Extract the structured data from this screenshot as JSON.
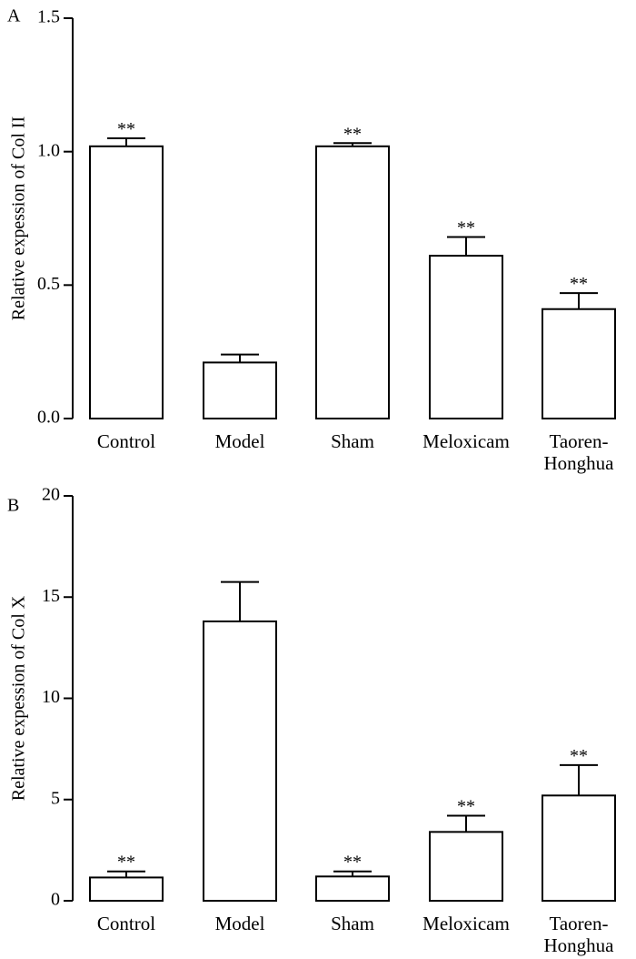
{
  "chart_data": [
    {
      "type": "bar",
      "panel_label": "A",
      "ylabel": "Relative expession of Col II",
      "xlabel": "",
      "ylim": [
        0,
        1.5
      ],
      "yticks": [
        "0.0",
        "0.5",
        "1.0",
        "1.5"
      ],
      "ytick_values": [
        0,
        0.5,
        1.0,
        1.5
      ],
      "categories": [
        {
          "lines": [
            "Control"
          ]
        },
        {
          "lines": [
            "Model"
          ]
        },
        {
          "lines": [
            "Sham"
          ]
        },
        {
          "lines": [
            "Meloxicam"
          ]
        },
        {
          "lines": [
            "Taoren-",
            "Honghua"
          ]
        }
      ],
      "values": [
        1.02,
        0.21,
        1.02,
        0.61,
        0.41
      ],
      "errors": [
        0.03,
        0.03,
        0.012,
        0.07,
        0.06
      ],
      "significance": [
        "**",
        "",
        "**",
        "**",
        "**"
      ]
    },
    {
      "type": "bar",
      "panel_label": "B",
      "ylabel": "Relative expession of Col X",
      "xlabel": "",
      "ylim": [
        0,
        20
      ],
      "yticks": [
        "0",
        "5",
        "10",
        "15",
        "20"
      ],
      "ytick_values": [
        0,
        5,
        10,
        15,
        20
      ],
      "categories": [
        {
          "lines": [
            "Control"
          ]
        },
        {
          "lines": [
            "Model"
          ]
        },
        {
          "lines": [
            "Sham"
          ]
        },
        {
          "lines": [
            "Meloxicam"
          ]
        },
        {
          "lines": [
            "Taoren-",
            "Honghua"
          ]
        }
      ],
      "values": [
        1.15,
        13.8,
        1.2,
        3.4,
        5.2
      ],
      "errors": [
        0.3,
        1.95,
        0.25,
        0.8,
        1.5
      ],
      "significance": [
        "**",
        "",
        "**",
        "**",
        "**"
      ]
    }
  ]
}
